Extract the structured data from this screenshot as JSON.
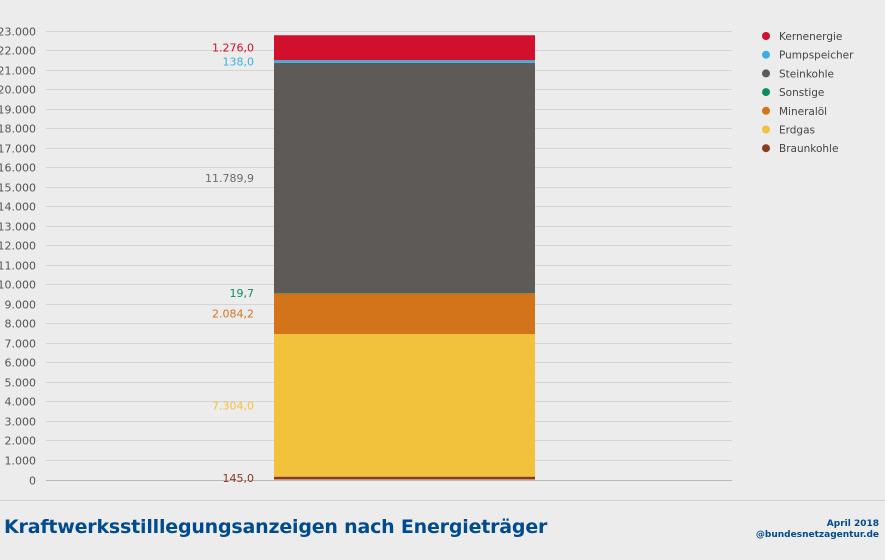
{
  "chart_data": {
    "type": "bar",
    "stacked": true,
    "categories": [
      ""
    ],
    "series": [
      {
        "name": "Braunkohle",
        "value": 145.0,
        "label": "145,0",
        "color": "#8b3a1d",
        "label_color": "#8b3a1d"
      },
      {
        "name": "Erdgas",
        "value": 7304.0,
        "label": "7.304,0",
        "color": "#f2c23c",
        "label_color": "#f2c23c"
      },
      {
        "name": "Mineralöl",
        "value": 2084.2,
        "label": "2.084,2",
        "color": "#d4741a",
        "label_color": "#d4741a"
      },
      {
        "name": "Sonstige",
        "value": 19.7,
        "label": "19,7",
        "color": "#0a8f5c",
        "label_color": "#0a8f5c"
      },
      {
        "name": "Steinkohle",
        "value": 11789.9,
        "label": "11.789,9",
        "color": "#5d5a57",
        "label_color": "#6b6b6b"
      },
      {
        "name": "Pumpspeicher",
        "value": 138.0,
        "label": "138,0",
        "color": "#3bb0e0",
        "label_color": "#3bb0e0"
      },
      {
        "name": "Kernenergie",
        "value": 1276.0,
        "label": "1.276,0",
        "color": "#d0102c",
        "label_color": "#d0102c"
      }
    ],
    "legend_order": [
      "Kernenergie",
      "Pumpspeicher",
      "Steinkohle",
      "Sonstige",
      "Mineralöl",
      "Erdgas",
      "Braunkohle"
    ],
    "legend_position": "top-right",
    "yticks": [
      0,
      1000,
      2000,
      3000,
      4000,
      5000,
      6000,
      7000,
      8000,
      9000,
      10000,
      11000,
      12000,
      13000,
      14000,
      15000,
      16000,
      17000,
      18000,
      19000,
      20000,
      21000,
      22000,
      23000
    ],
    "ytick_labels": [
      "0",
      "1.000",
      "2.000",
      "3.000",
      "4.000",
      "5.000",
      "6.000",
      "7.000",
      "8.000",
      "9.000",
      "10.000",
      "11.000",
      "12.000",
      "13.000",
      "14.000",
      "15.000",
      "16.000",
      "17.000",
      "18.000",
      "19.000",
      "20.000",
      "21.000",
      "22.000",
      "23.000"
    ],
    "ylim": [
      0,
      23000
    ],
    "grid": true
  },
  "title": "Kraftwerksstilllegungsanzeigen nach Energieträger",
  "credit": {
    "date": "April 2018",
    "source": "@bundesnetzagentur.de"
  }
}
